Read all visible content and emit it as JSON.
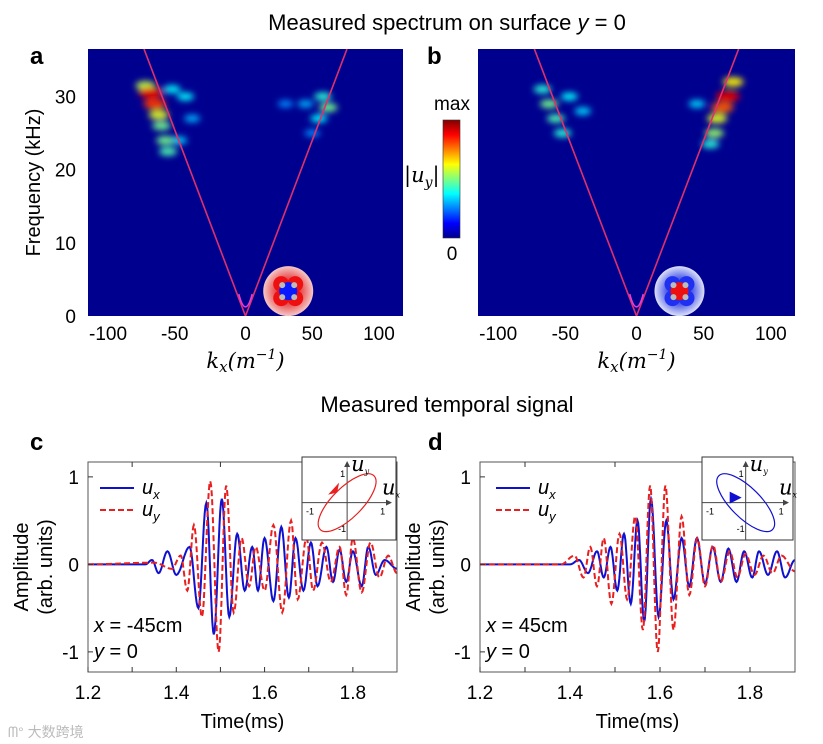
{
  "figure": {
    "top_title": "Measured spectrum on surface ",
    "top_title_var": "y",
    "top_title_tail": " = 0",
    "bottom_title": "Measured temporal signal",
    "watermark": "大数跨境"
  },
  "colorbar": {
    "max_label": "max",
    "min_label": "0",
    "label": "|u_y|",
    "label_display": "|u",
    "label_sub": "y"
  },
  "colors": {
    "heat_bg": "#00008f",
    "dispersion_line": "#e0306a",
    "ux": "#1010d0",
    "uy": "#e82020"
  },
  "chart_data": [
    {
      "panel": "a",
      "type": "heatmap",
      "xlabel": "k_x (m^-1)",
      "xlabel_main": "k",
      "xlabel_sub": "x",
      "xlabel_unit": "(m",
      "xlabel_exp": "−1",
      "xlabel_close": ")",
      "ylabel": "Frequency (kHz)",
      "xlim": [
        -118,
        118
      ],
      "ylim": [
        0,
        36.5
      ],
      "xticks": [
        -100,
        -50,
        0,
        50,
        100
      ],
      "yticks": [
        0,
        10,
        20,
        30
      ],
      "dispersion_slope_khz_per_m": 0.48,
      "inset": "mode-profile-blue-core",
      "blobs": [
        {
          "kx": -40,
          "f": 27,
          "v": 0.2
        },
        {
          "kx": -50,
          "f": 24,
          "v": 0.25
        },
        {
          "kx": -45,
          "f": 30,
          "v": 0.3
        },
        {
          "kx": -55,
          "f": 31,
          "v": 0.3
        },
        {
          "kx": -58,
          "f": 22.5,
          "v": 0.4
        },
        {
          "kx": -60,
          "f": 24,
          "v": 0.45
        },
        {
          "kx": -63,
          "f": 26,
          "v": 0.45
        },
        {
          "kx": -65,
          "f": 27.5,
          "v": 0.6
        },
        {
          "kx": -75,
          "f": 31.5,
          "v": 0.55
        },
        {
          "kx": -68,
          "f": 29,
          "v": 0.9
        },
        {
          "kx": -71,
          "f": 30.5,
          "v": 1.0
        },
        {
          "kx": 30,
          "f": 29,
          "v": 0.15
        },
        {
          "kx": 50,
          "f": 25,
          "v": 0.15
        },
        {
          "kx": 45,
          "f": 29,
          "v": 0.2
        },
        {
          "kx": 55,
          "f": 27,
          "v": 0.3
        },
        {
          "kx": 58,
          "f": 30,
          "v": 0.35
        },
        {
          "kx": 62,
          "f": 28.5,
          "v": 0.45
        }
      ]
    },
    {
      "panel": "b",
      "type": "heatmap",
      "xlabel": "k_x (m^-1)",
      "xlim": [
        -118,
        118
      ],
      "ylim": [
        0,
        36.5
      ],
      "xticks": [
        -100,
        -50,
        0,
        50,
        100
      ],
      "dispersion_slope_khz_per_m": 0.48,
      "inset": "mode-profile-red-core",
      "blobs": [
        {
          "kx": -40,
          "f": 28,
          "v": 0.25
        },
        {
          "kx": -50,
          "f": 30,
          "v": 0.3
        },
        {
          "kx": -55,
          "f": 25,
          "v": 0.35
        },
        {
          "kx": -70,
          "f": 31,
          "v": 0.35
        },
        {
          "kx": -60,
          "f": 27,
          "v": 0.4
        },
        {
          "kx": -65,
          "f": 29,
          "v": 0.45
        },
        {
          "kx": 45,
          "f": 29,
          "v": 0.25
        },
        {
          "kx": 55,
          "f": 23.5,
          "v": 0.35
        },
        {
          "kx": 58,
          "f": 25,
          "v": 0.5
        },
        {
          "kx": 60,
          "f": 27,
          "v": 0.6
        },
        {
          "kx": 72,
          "f": 32,
          "v": 0.65
        },
        {
          "kx": 64,
          "f": 28.5,
          "v": 0.85
        },
        {
          "kx": 68,
          "f": 30,
          "v": 1.0
        }
      ]
    },
    {
      "panel": "c",
      "type": "line",
      "xlabel": "Time(ms)",
      "ylabel": "Amplitude",
      "ylabel2": "(arb. units)",
      "xlim": [
        1.2,
        1.9
      ],
      "ylim": [
        -1.23,
        1.17
      ],
      "xticks": [
        1.2,
        1.4,
        1.6,
        1.8
      ],
      "xticks_minor": [
        1.3,
        1.5,
        1.7
      ],
      "yticks": [
        -1,
        0,
        1
      ],
      "annotation": [
        "x = -45cm",
        "y = 0"
      ],
      "legend": [
        "u_x",
        "u_y"
      ],
      "inset": {
        "xlabel": "u_x",
        "ylabel": "u_y",
        "ticks": [
          "1",
          "-1",
          "1",
          "-1"
        ],
        "tilt_deg": -45,
        "color": "#e82020"
      },
      "series": [
        {
          "name": "u_x",
          "style": "solid",
          "extrema": [
            [
              1.2,
              0
            ],
            [
              1.33,
              0
            ],
            [
              1.345,
              0.05
            ],
            [
              1.36,
              -0.1
            ],
            [
              1.38,
              0.15
            ],
            [
              1.4,
              -0.12
            ],
            [
              1.43,
              0.2
            ],
            [
              1.45,
              -0.5
            ],
            [
              1.468,
              0.7
            ],
            [
              1.485,
              -0.8
            ],
            [
              1.503,
              0.75
            ],
            [
              1.52,
              -0.6
            ],
            [
              1.538,
              0.35
            ],
            [
              1.555,
              -0.3
            ],
            [
              1.572,
              0.2
            ],
            [
              1.585,
              -0.3
            ],
            [
              1.6,
              0.3
            ],
            [
              1.62,
              -0.42
            ],
            [
              1.638,
              0.43
            ],
            [
              1.655,
              -0.38
            ],
            [
              1.67,
              0.3
            ],
            [
              1.688,
              -0.3
            ],
            [
              1.705,
              0.25
            ],
            [
              1.72,
              -0.25
            ],
            [
              1.74,
              0.2
            ],
            [
              1.755,
              -0.2
            ],
            [
              1.77,
              0.17
            ],
            [
              1.785,
              -0.2
            ],
            [
              1.8,
              0.15
            ],
            [
              1.82,
              -0.25
            ],
            [
              1.835,
              0.2
            ],
            [
              1.852,
              -0.12
            ],
            [
              1.872,
              0.05
            ],
            [
              1.9,
              -0.05
            ]
          ]
        },
        {
          "name": "u_y",
          "style": "dashed",
          "extrema": [
            [
              1.2,
              0
            ],
            [
              1.35,
              0.02
            ],
            [
              1.39,
              -0.05
            ],
            [
              1.41,
              0.1
            ],
            [
              1.425,
              -0.3
            ],
            [
              1.44,
              0.45
            ],
            [
              1.458,
              -0.6
            ],
            [
              1.477,
              0.95
            ],
            [
              1.496,
              -1.0
            ],
            [
              1.513,
              0.9
            ],
            [
              1.53,
              -0.55
            ],
            [
              1.548,
              0.3
            ],
            [
              1.565,
              -0.25
            ],
            [
              1.58,
              0.2
            ],
            [
              1.6,
              -0.3
            ],
            [
              1.62,
              0.45
            ],
            [
              1.64,
              -0.55
            ],
            [
              1.66,
              0.5
            ],
            [
              1.675,
              -0.4
            ],
            [
              1.695,
              0.3
            ],
            [
              1.71,
              -0.3
            ],
            [
              1.73,
              0.25
            ],
            [
              1.75,
              -0.2
            ],
            [
              1.77,
              0.2
            ],
            [
              1.785,
              -0.35
            ],
            [
              1.8,
              0.3
            ],
            [
              1.82,
              -0.32
            ],
            [
              1.84,
              0.25
            ],
            [
              1.86,
              -0.15
            ],
            [
              1.88,
              0.1
            ],
            [
              1.9,
              -0.1
            ]
          ]
        }
      ]
    },
    {
      "panel": "d",
      "type": "line",
      "xlabel": "Time(ms)",
      "ylabel": "Amplitude",
      "ylabel2": "(arb. units)",
      "xlim": [
        1.2,
        1.9
      ],
      "ylim": [
        -1.23,
        1.17
      ],
      "xticks": [
        1.2,
        1.4,
        1.6,
        1.8
      ],
      "xticks_minor": [
        1.3,
        1.5,
        1.7
      ],
      "yticks": [
        -1,
        0,
        1
      ],
      "annotation": [
        "x = 45cm",
        "y = 0"
      ],
      "legend": [
        "u_x",
        "u_y"
      ],
      "inset": {
        "xlabel": "u_x",
        "ylabel": "u_y",
        "ticks": [
          "1",
          "-1",
          "1",
          "-1"
        ],
        "tilt_deg": 45,
        "color": "#1010d0"
      },
      "series": [
        {
          "name": "u_x",
          "style": "solid",
          "extrema": [
            [
              1.2,
              0
            ],
            [
              1.4,
              0
            ],
            [
              1.42,
              0.05
            ],
            [
              1.44,
              -0.1
            ],
            [
              1.46,
              0.15
            ],
            [
              1.475,
              -0.15
            ],
            [
              1.49,
              0.2
            ],
            [
              1.505,
              -0.3
            ],
            [
              1.52,
              0.35
            ],
            [
              1.535,
              -0.45
            ],
            [
              1.55,
              0.5
            ],
            [
              1.565,
              -0.65
            ],
            [
              1.58,
              0.75
            ],
            [
              1.597,
              -0.6
            ],
            [
              1.614,
              0.5
            ],
            [
              1.63,
              -0.4
            ],
            [
              1.648,
              0.3
            ],
            [
              1.665,
              -0.25
            ],
            [
              1.682,
              0.3
            ],
            [
              1.7,
              -0.22
            ],
            [
              1.717,
              0.2
            ],
            [
              1.735,
              -0.2
            ],
            [
              1.752,
              0.18
            ],
            [
              1.77,
              -0.2
            ],
            [
              1.787,
              0.15
            ],
            [
              1.805,
              -0.15
            ],
            [
              1.82,
              0.15
            ],
            [
              1.84,
              -0.12
            ],
            [
              1.86,
              0.15
            ],
            [
              1.878,
              -0.15
            ],
            [
              1.9,
              0.05
            ]
          ]
        },
        {
          "name": "u_y",
          "style": "dashed",
          "extrema": [
            [
              1.2,
              0
            ],
            [
              1.38,
              0
            ],
            [
              1.41,
              0.1
            ],
            [
              1.43,
              -0.15
            ],
            [
              1.445,
              0.2
            ],
            [
              1.46,
              -0.25
            ],
            [
              1.475,
              0.3
            ],
            [
              1.492,
              -0.45
            ],
            [
              1.51,
              0.35
            ],
            [
              1.527,
              -0.4
            ],
            [
              1.545,
              0.55
            ],
            [
              1.562,
              -0.75
            ],
            [
              1.578,
              0.9
            ],
            [
              1.595,
              -1.0
            ],
            [
              1.612,
              0.9
            ],
            [
              1.63,
              -0.75
            ],
            [
              1.648,
              0.55
            ],
            [
              1.665,
              -0.35
            ],
            [
              1.683,
              0.3
            ],
            [
              1.7,
              -0.25
            ],
            [
              1.718,
              0.22
            ],
            [
              1.735,
              -0.2
            ],
            [
              1.755,
              0.15
            ],
            [
              1.772,
              -0.15
            ],
            [
              1.79,
              0.12
            ],
            [
              1.81,
              -0.12
            ],
            [
              1.83,
              0.1
            ],
            [
              1.85,
              -0.1
            ],
            [
              1.87,
              0.1
            ],
            [
              1.9,
              -0.08
            ]
          ]
        }
      ]
    }
  ]
}
